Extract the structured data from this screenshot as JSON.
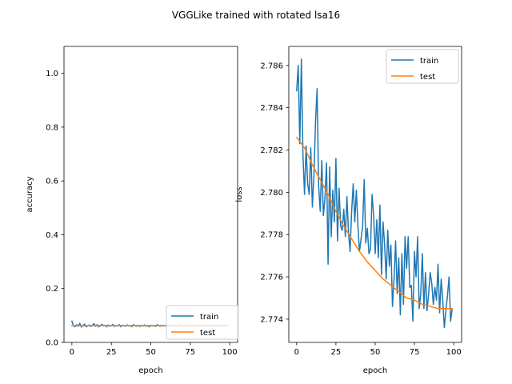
{
  "figure": {
    "suptitle": "VGGLike trained with rotated lsa16"
  },
  "chart_data": [
    {
      "type": "line",
      "xlabel": "epoch",
      "ylabel": "accuracy",
      "xlim": [
        -5,
        105
      ],
      "ylim": [
        0,
        1.1
      ],
      "xticks": [
        0,
        25,
        50,
        75,
        100
      ],
      "yticks": [
        0.0,
        0.2,
        0.4,
        0.6,
        0.8,
        1.0
      ],
      "xtick_labels": [
        "0",
        "25",
        "50",
        "75",
        "100"
      ],
      "ytick_labels": [
        "0.0",
        "0.2",
        "0.4",
        "0.6",
        "0.8",
        "1.0"
      ],
      "legend_position": "lower-right",
      "series": [
        {
          "name": "train",
          "color": "#1f77b4",
          "x": [
            0,
            1,
            2,
            3,
            4,
            5,
            6,
            7,
            8,
            9,
            10,
            11,
            12,
            13,
            14,
            15,
            16,
            17,
            18,
            19,
            20,
            21,
            22,
            23,
            24,
            25,
            26,
            27,
            28,
            29,
            30,
            31,
            32,
            33,
            34,
            35,
            36,
            37,
            38,
            39,
            40,
            41,
            42,
            43,
            44,
            45,
            46,
            47,
            48,
            49,
            50,
            51,
            52,
            53,
            54,
            55,
            56,
            57,
            58,
            59,
            60,
            61,
            62,
            63,
            64,
            65,
            66,
            67,
            68,
            69,
            70,
            71,
            72,
            73,
            74,
            75,
            76,
            77,
            78,
            79,
            80,
            81,
            82,
            83,
            84,
            85,
            86,
            87,
            88,
            89,
            90,
            91,
            92,
            93,
            94,
            95,
            96,
            97,
            98,
            99
          ],
          "values": [
            0.079,
            0.062,
            0.058,
            0.066,
            0.06,
            0.071,
            0.057,
            0.063,
            0.068,
            0.058,
            0.061,
            0.065,
            0.059,
            0.063,
            0.07,
            0.06,
            0.066,
            0.058,
            0.062,
            0.067,
            0.061,
            0.064,
            0.058,
            0.065,
            0.06,
            0.062,
            0.067,
            0.059,
            0.063,
            0.061,
            0.066,
            0.058,
            0.064,
            0.062,
            0.06,
            0.065,
            0.061,
            0.063,
            0.058,
            0.066,
            0.062,
            0.06,
            0.064,
            0.059,
            0.063,
            0.061,
            0.065,
            0.06,
            0.062,
            0.058,
            0.064,
            0.061,
            0.063,
            0.059,
            0.066,
            0.062,
            0.06,
            0.064,
            0.061,
            0.063,
            0.059,
            0.065,
            0.062,
            0.06,
            0.064,
            0.061,
            0.063,
            0.06,
            0.066,
            0.062,
            0.059,
            0.064,
            0.061,
            0.063,
            0.06,
            0.065,
            0.062,
            0.061,
            0.064,
            0.06,
            0.063,
            0.062,
            0.059,
            0.065,
            0.061,
            0.063,
            0.06,
            0.064,
            0.062,
            0.061,
            0.063,
            0.06,
            0.064,
            0.062,
            0.061,
            0.063,
            0.06,
            0.064,
            0.062,
            0.063
          ]
        },
        {
          "name": "test",
          "color": "#ff7f0e",
          "x": [
            0,
            10,
            20,
            30,
            40,
            50,
            60,
            70,
            80,
            90,
            99
          ],
          "values": [
            0.062,
            0.0622,
            0.0624,
            0.0625,
            0.0625,
            0.0625,
            0.0625,
            0.0625,
            0.0625,
            0.0625,
            0.0625
          ]
        }
      ]
    },
    {
      "type": "line",
      "xlabel": "epoch",
      "ylabel": "loss",
      "xlim": [
        -5,
        105
      ],
      "ylim": [
        2.7729,
        2.7869
      ],
      "xticks": [
        0,
        25,
        50,
        75,
        100
      ],
      "yticks": [
        2.774,
        2.776,
        2.778,
        2.78,
        2.782,
        2.784,
        2.786
      ],
      "xtick_labels": [
        "0",
        "25",
        "50",
        "75",
        "100"
      ],
      "ytick_labels": [
        "2.774",
        "2.776",
        "2.778",
        "2.780",
        "2.782",
        "2.784",
        "2.786"
      ],
      "legend_position": "upper-right",
      "series": [
        {
          "name": "train",
          "color": "#1f77b4",
          "x": [
            0,
            1,
            2,
            3,
            4,
            5,
            6,
            7,
            8,
            9,
            10,
            11,
            12,
            13,
            14,
            15,
            16,
            17,
            18,
            19,
            20,
            21,
            22,
            23,
            24,
            25,
            26,
            27,
            28,
            29,
            30,
            31,
            32,
            33,
            34,
            35,
            36,
            37,
            38,
            39,
            40,
            41,
            42,
            43,
            44,
            45,
            46,
            47,
            48,
            49,
            50,
            51,
            52,
            53,
            54,
            55,
            56,
            57,
            58,
            59,
            60,
            61,
            62,
            63,
            64,
            65,
            66,
            67,
            68,
            69,
            70,
            71,
            72,
            73,
            74,
            75,
            76,
            77,
            78,
            79,
            80,
            81,
            82,
            83,
            84,
            85,
            86,
            87,
            88,
            89,
            90,
            91,
            92,
            93,
            94,
            95,
            96,
            97,
            98,
            99
          ],
          "values": [
            2.7848,
            2.786,
            2.7823,
            2.7863,
            2.7818,
            2.7799,
            2.7822,
            2.7804,
            2.7799,
            2.7821,
            2.7793,
            2.7808,
            2.7833,
            2.7849,
            2.7803,
            2.7791,
            2.7815,
            2.7789,
            2.7797,
            2.7814,
            2.7766,
            2.7812,
            2.7779,
            2.7801,
            2.7786,
            2.7816,
            2.7777,
            2.7802,
            2.7784,
            2.7782,
            2.7792,
            2.7779,
            2.7798,
            2.7781,
            2.7772,
            2.7791,
            2.7804,
            2.7786,
            2.7801,
            2.7784,
            2.7772,
            2.7778,
            2.7784,
            2.7806,
            2.7776,
            2.7783,
            2.7771,
            2.7773,
            2.7799,
            2.7789,
            2.7771,
            2.7787,
            2.7769,
            2.7794,
            2.7761,
            2.7786,
            2.7775,
            2.7759,
            2.7782,
            2.7765,
            2.7775,
            2.7746,
            2.7759,
            2.7777,
            2.7752,
            2.7769,
            2.7742,
            2.7771,
            2.7747,
            2.7779,
            2.7764,
            2.7779,
            2.7755,
            2.7756,
            2.7739,
            2.7772,
            2.776,
            2.7779,
            2.7745,
            2.7752,
            2.7771,
            2.7745,
            2.7762,
            2.7744,
            2.7752,
            2.7762,
            2.7757,
            2.7747,
            2.7755,
            2.7749,
            2.7766,
            2.7743,
            2.7759,
            2.7749,
            2.7736,
            2.7744,
            2.7751,
            2.776,
            2.7739,
            2.7745
          ]
        },
        {
          "name": "test",
          "color": "#ff7f0e",
          "x": [
            0,
            5,
            10,
            15,
            20,
            25,
            30,
            35,
            40,
            45,
            50,
            55,
            60,
            65,
            70,
            75,
            80,
            85,
            90,
            95,
            99
          ],
          "values": [
            2.7826,
            2.7821,
            2.7813,
            2.7806,
            2.7799,
            2.7791,
            2.7784,
            2.7778,
            2.7772,
            2.7767,
            2.7763,
            2.7759,
            2.7756,
            2.7753,
            2.775,
            2.7749,
            2.7747,
            2.7746,
            2.7745,
            2.7745,
            2.7745
          ]
        }
      ]
    }
  ]
}
